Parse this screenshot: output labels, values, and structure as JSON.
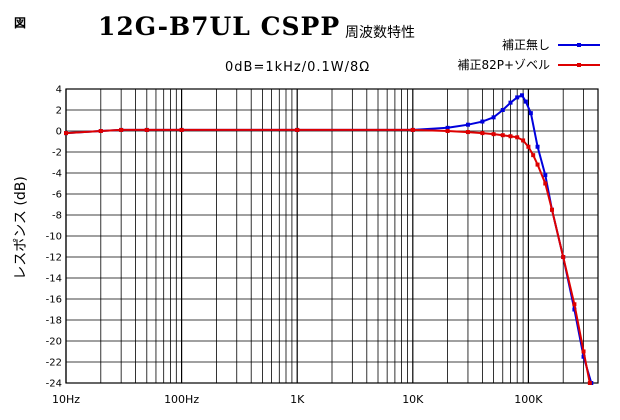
{
  "figure_label": "図",
  "title": "12G-B7UL CSPP",
  "subtitle": "周波数特性",
  "reference": "0dB=1kHz/0.1W/8Ω",
  "chart_data": {
    "type": "line",
    "xscale": "log",
    "xlim": [
      10,
      400000
    ],
    "ylim": [
      -24,
      4
    ],
    "ylabel": "レスポンス (dB)",
    "x_ticks": [
      {
        "value": 10,
        "label": "10Hz"
      },
      {
        "value": 100,
        "label": "100Hz"
      },
      {
        "value": 1000,
        "label": "1K"
      },
      {
        "value": 10000,
        "label": "10K"
      },
      {
        "value": 100000,
        "label": "100K"
      }
    ],
    "y_ticks": [
      4,
      2,
      0,
      -2,
      -4,
      -6,
      -8,
      -10,
      -12,
      -14,
      -16,
      -18,
      -20,
      -22,
      -24
    ],
    "grid": true,
    "legend_position": "top-right",
    "series": [
      {
        "name": "補正無し",
        "color": "#0000dd",
        "points": [
          [
            10,
            -0.2
          ],
          [
            20,
            0
          ],
          [
            30,
            0.1
          ],
          [
            50,
            0.1
          ],
          [
            100,
            0.1
          ],
          [
            1000,
            0.1
          ],
          [
            10000,
            0.1
          ],
          [
            20000,
            0.3
          ],
          [
            30000,
            0.6
          ],
          [
            40000,
            0.9
          ],
          [
            50000,
            1.3
          ],
          [
            60000,
            2.0
          ],
          [
            70000,
            2.7
          ],
          [
            80000,
            3.2
          ],
          [
            88000,
            3.4
          ],
          [
            95000,
            2.8
          ],
          [
            105000,
            1.7
          ],
          [
            120000,
            -1.5
          ],
          [
            140000,
            -4.2
          ],
          [
            160000,
            -7.5
          ],
          [
            200000,
            -12.0
          ],
          [
            250000,
            -17.0
          ],
          [
            300000,
            -21.5
          ],
          [
            350000,
            -24
          ]
        ]
      },
      {
        "name": "補正82P+ゾベル",
        "color": "#dd0000",
        "points": [
          [
            10,
            -0.2
          ],
          [
            20,
            0
          ],
          [
            30,
            0.1
          ],
          [
            50,
            0.1
          ],
          [
            100,
            0.1
          ],
          [
            1000,
            0.1
          ],
          [
            10000,
            0.1
          ],
          [
            20000,
            0
          ],
          [
            30000,
            -0.1
          ],
          [
            40000,
            -0.2
          ],
          [
            50000,
            -0.3
          ],
          [
            60000,
            -0.4
          ],
          [
            70000,
            -0.5
          ],
          [
            80000,
            -0.6
          ],
          [
            90000,
            -0.9
          ],
          [
            100000,
            -1.5
          ],
          [
            110000,
            -2.3
          ],
          [
            120000,
            -3.2
          ],
          [
            140000,
            -5.0
          ],
          [
            160000,
            -7.5
          ],
          [
            200000,
            -12.0
          ],
          [
            250000,
            -16.5
          ],
          [
            300000,
            -21.0
          ],
          [
            340000,
            -24
          ]
        ]
      }
    ]
  }
}
